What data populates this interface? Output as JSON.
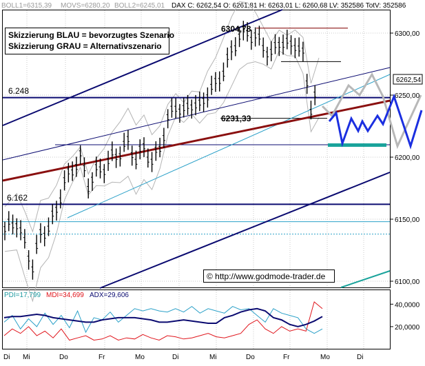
{
  "header": {
    "boll1": "BOLL1=6315,39",
    "movs": "MOVS=6280,20",
    "boll2": "BOLL2=6245,01",
    "quote": "DAX C: 6262,54 O: 6261,81 H: 6263,01 L: 6260,68 LV: 352586 TotV: 352586"
  },
  "legend": {
    "line1": "Skizzierung BLAU = bevorzugtes Szenario",
    "line2": "Skizzierung GRAU = Alternativszenario"
  },
  "annotations": {
    "level_6248": "6.248",
    "level_6162": "6.162",
    "high": "6304,78",
    "low": "6231,33",
    "price_tag": "6262,54",
    "watermark": "© http://www.godmode-trader.de"
  },
  "indicator": {
    "pdi": "PDI=17,799",
    "mdi": "MDI=34,699",
    "adx": "ADX=29,606",
    "colors": {
      "pdi": "#1f9aa0",
      "mdi": "#e0141b",
      "adx": "#0a0a70"
    }
  },
  "colors": {
    "price": "#000000",
    "bollinger": "#b4b4b4",
    "blue_scenario": "#1b2fe0",
    "grey_scenario": "#b8b8b8",
    "trendline": "#8a1010",
    "channel": "#0a0a70",
    "support_zone": "#1aa39b",
    "cyan_line": "#2aa0c8"
  },
  "chart_data": [
    {
      "type": "line",
      "subtype": "ohlc-bar-chart",
      "y_axis": {
        "ylim": [
          6095,
          6318
        ],
        "ticks": [
          "6300,00",
          "6250,00",
          "6200,00",
          "6150,00",
          "6100,00"
        ],
        "tick_values": [
          6300,
          6250,
          6200,
          6150,
          6100
        ]
      },
      "x_axis": {
        "ticks": [
          "Di",
          "Mi",
          "Do",
          "Fr",
          "Mo",
          "Di",
          "Mi",
          "Do",
          "Fr",
          "Mo",
          "Di"
        ]
      },
      "grid": true,
      "horizontal_levels": [
        6304,
        6248,
        6231.33,
        6210,
        6162,
        6148,
        6138
      ],
      "price_path": [
        [
          0,
          6142
        ],
        [
          3,
          6148
        ],
        [
          5,
          6130
        ],
        [
          7,
          6112
        ],
        [
          9,
          6138
        ],
        [
          11,
          6143
        ],
        [
          13,
          6158
        ],
        [
          15,
          6180
        ],
        [
          17,
          6190
        ],
        [
          19,
          6200
        ],
        [
          21,
          6178
        ],
        [
          23,
          6188
        ],
        [
          25,
          6192
        ],
        [
          27,
          6200
        ],
        [
          29,
          6204
        ],
        [
          31,
          6212
        ],
        [
          33,
          6198
        ],
        [
          35,
          6208
        ],
        [
          37,
          6196
        ],
        [
          39,
          6208
        ],
        [
          41,
          6230
        ],
        [
          43,
          6242
        ],
        [
          45,
          6236
        ],
        [
          47,
          6244
        ],
        [
          49,
          6240
        ],
        [
          51,
          6252
        ],
        [
          53,
          6258
        ],
        [
          55,
          6270
        ],
        [
          57,
          6285
        ],
        [
          59,
          6298
        ],
        [
          61,
          6300
        ],
        [
          63,
          6297
        ],
        [
          65,
          6290
        ],
        [
          67,
          6282
        ],
        [
          69,
          6294
        ],
        [
          71,
          6290
        ],
        [
          73,
          6292
        ],
        [
          75,
          6282
        ],
        [
          77,
          6240
        ],
        [
          79,
          6256
        ]
      ],
      "price_tag_value": 6262.54
    },
    {
      "type": "line",
      "title": "ADX",
      "y_axis": {
        "ticks": [
          "40,0000",
          "20,0000"
        ],
        "tick_values": [
          40,
          20
        ],
        "ylim": [
          4,
          50
        ]
      },
      "series": [
        {
          "name": "PDI",
          "values": [
            24,
            30,
            18,
            27,
            20,
            32,
            22,
            30,
            19,
            34,
            15,
            28,
            26,
            33,
            24,
            30,
            36,
            34,
            36,
            34,
            33,
            36,
            33,
            38,
            32,
            36,
            34,
            32,
            38,
            35,
            36,
            30,
            24,
            36,
            32,
            30,
            28,
            18,
            14,
            18
          ]
        },
        {
          "name": "MDI",
          "values": [
            12,
            18,
            14,
            20,
            12,
            16,
            10,
            18,
            8,
            10,
            12,
            8,
            9,
            12,
            8,
            10,
            9,
            13,
            10,
            8,
            12,
            11,
            9,
            10,
            12,
            14,
            11,
            10,
            12,
            14,
            22,
            26,
            18,
            14,
            20,
            16,
            18,
            16,
            42,
            36
          ]
        },
        {
          "name": "ADX",
          "values": [
            28,
            29,
            29,
            30,
            31,
            30,
            28,
            27,
            26,
            25,
            24,
            24,
            26,
            27,
            28,
            28,
            28,
            27,
            26,
            24,
            24,
            25,
            26,
            25,
            24,
            23,
            23,
            28,
            30,
            33,
            35,
            36,
            34,
            28,
            26,
            22,
            20,
            22,
            25,
            29
          ]
        }
      ]
    }
  ]
}
